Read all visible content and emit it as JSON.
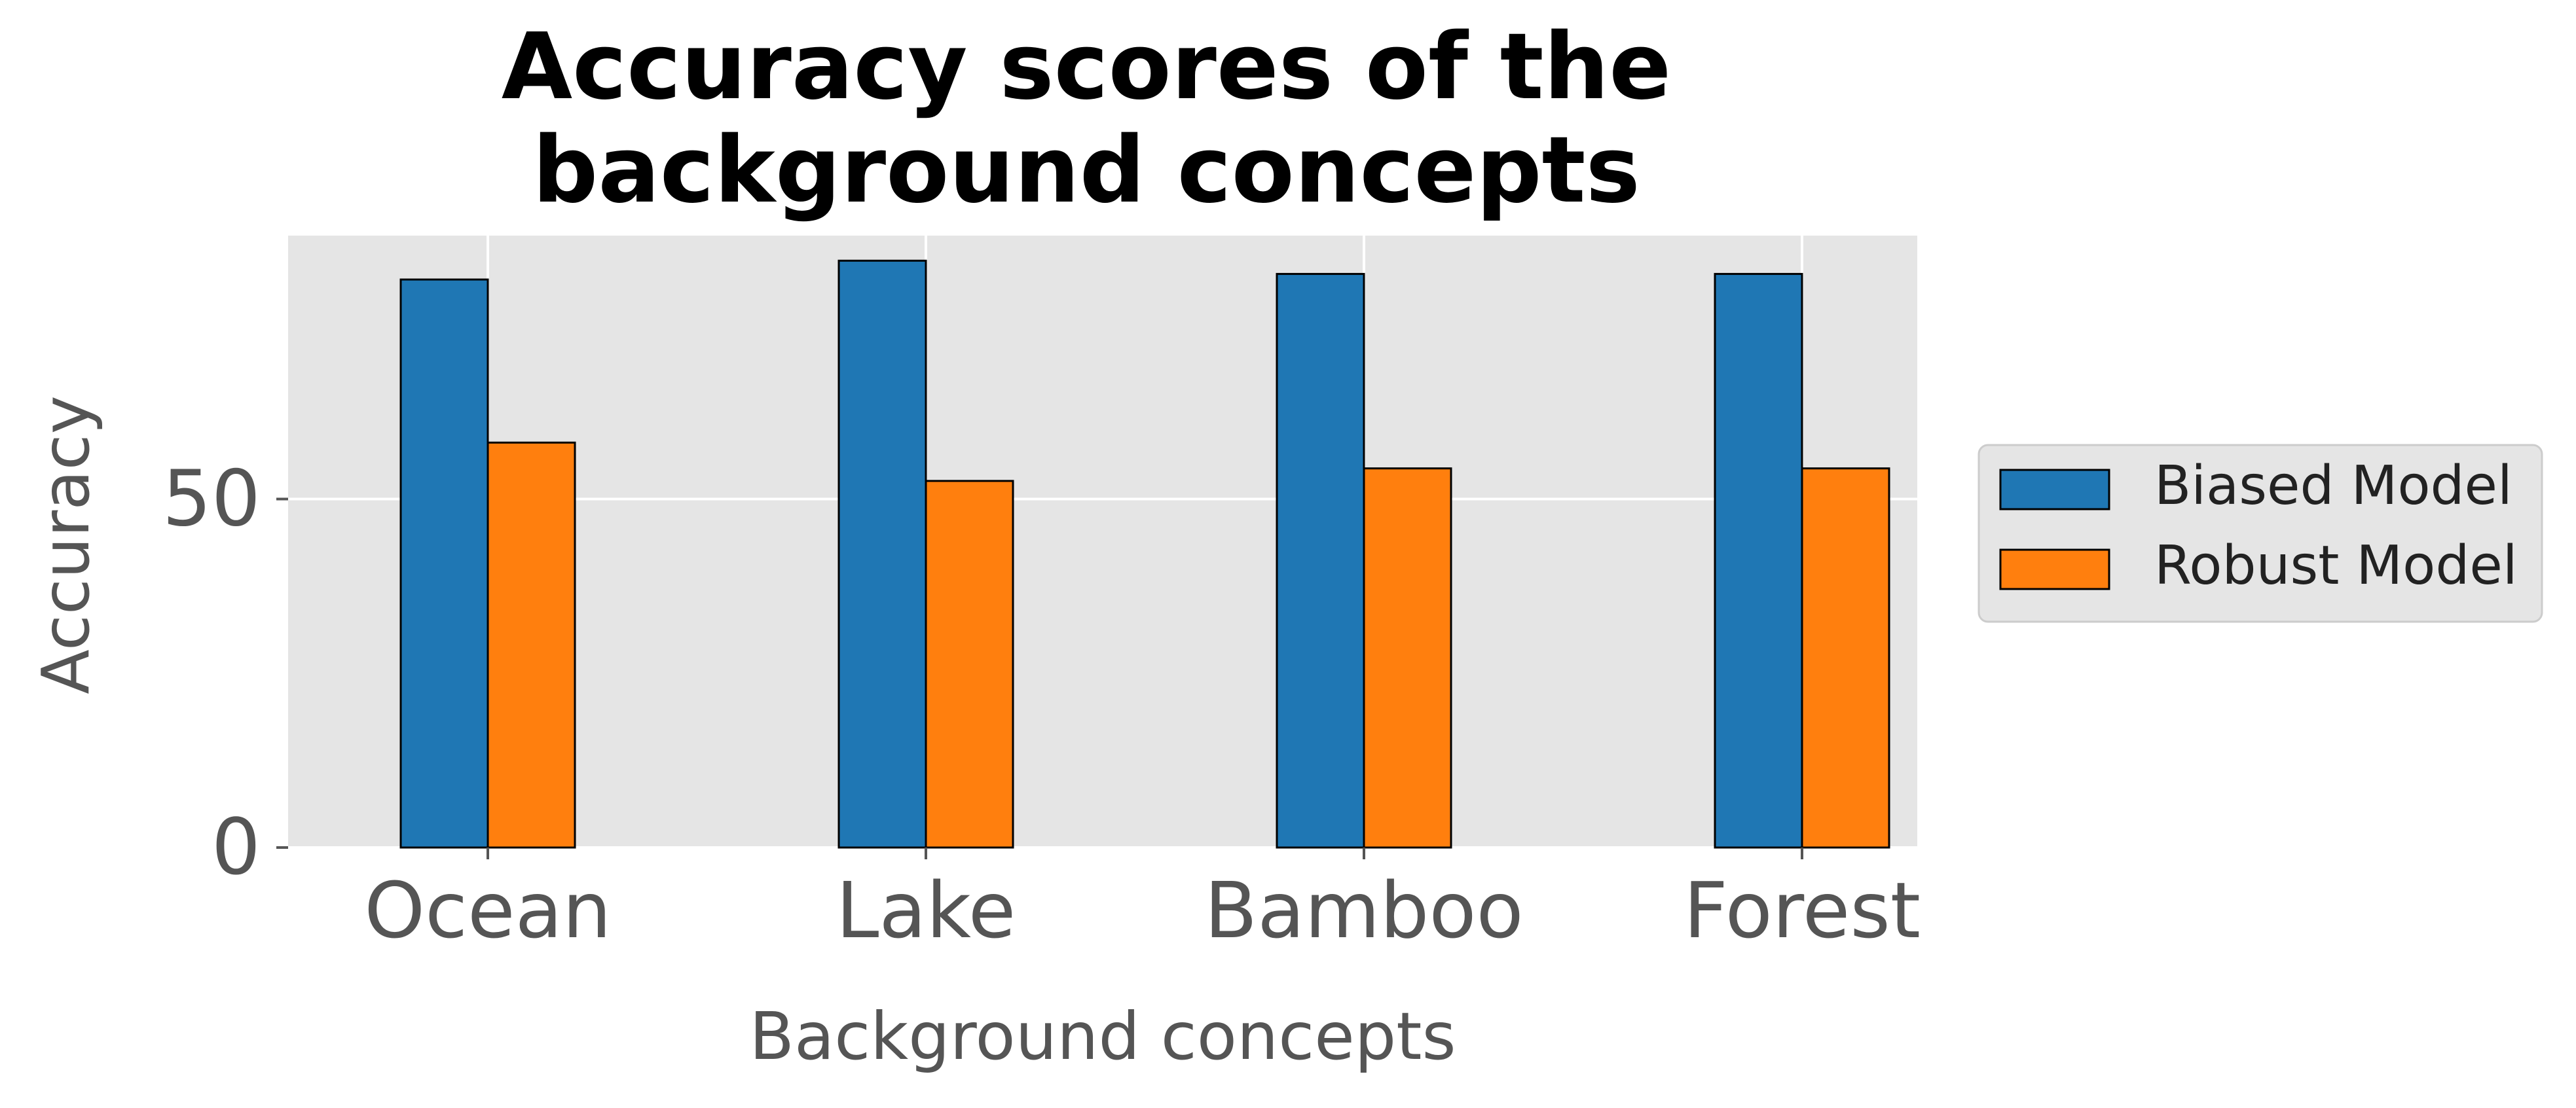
{
  "chart_data": {
    "type": "bar",
    "title_lines": [
      "Accuracy scores of the",
      "background concepts"
    ],
    "xlabel": "Background concepts",
    "ylabel": "Accuracy",
    "categories": [
      "Ocean",
      "Lake",
      "Bamboo",
      "Forest"
    ],
    "series": [
      {
        "name": "Biased Model",
        "values": [
          81.5,
          84.2,
          82.3,
          82.3
        ],
        "color": "#1f77b4"
      },
      {
        "name": "Robust Model",
        "values": [
          58.1,
          52.6,
          54.4,
          54.4
        ],
        "color": "#ff7f0e"
      }
    ],
    "yticks": [
      {
        "value": 0,
        "label": "0"
      },
      {
        "value": 50,
        "label": "50"
      }
    ],
    "ylim": [
      0,
      87.8
    ],
    "grid": true,
    "legend_position": "right",
    "plot_background": "#e5e5e5",
    "grid_color": "#ffffff"
  }
}
